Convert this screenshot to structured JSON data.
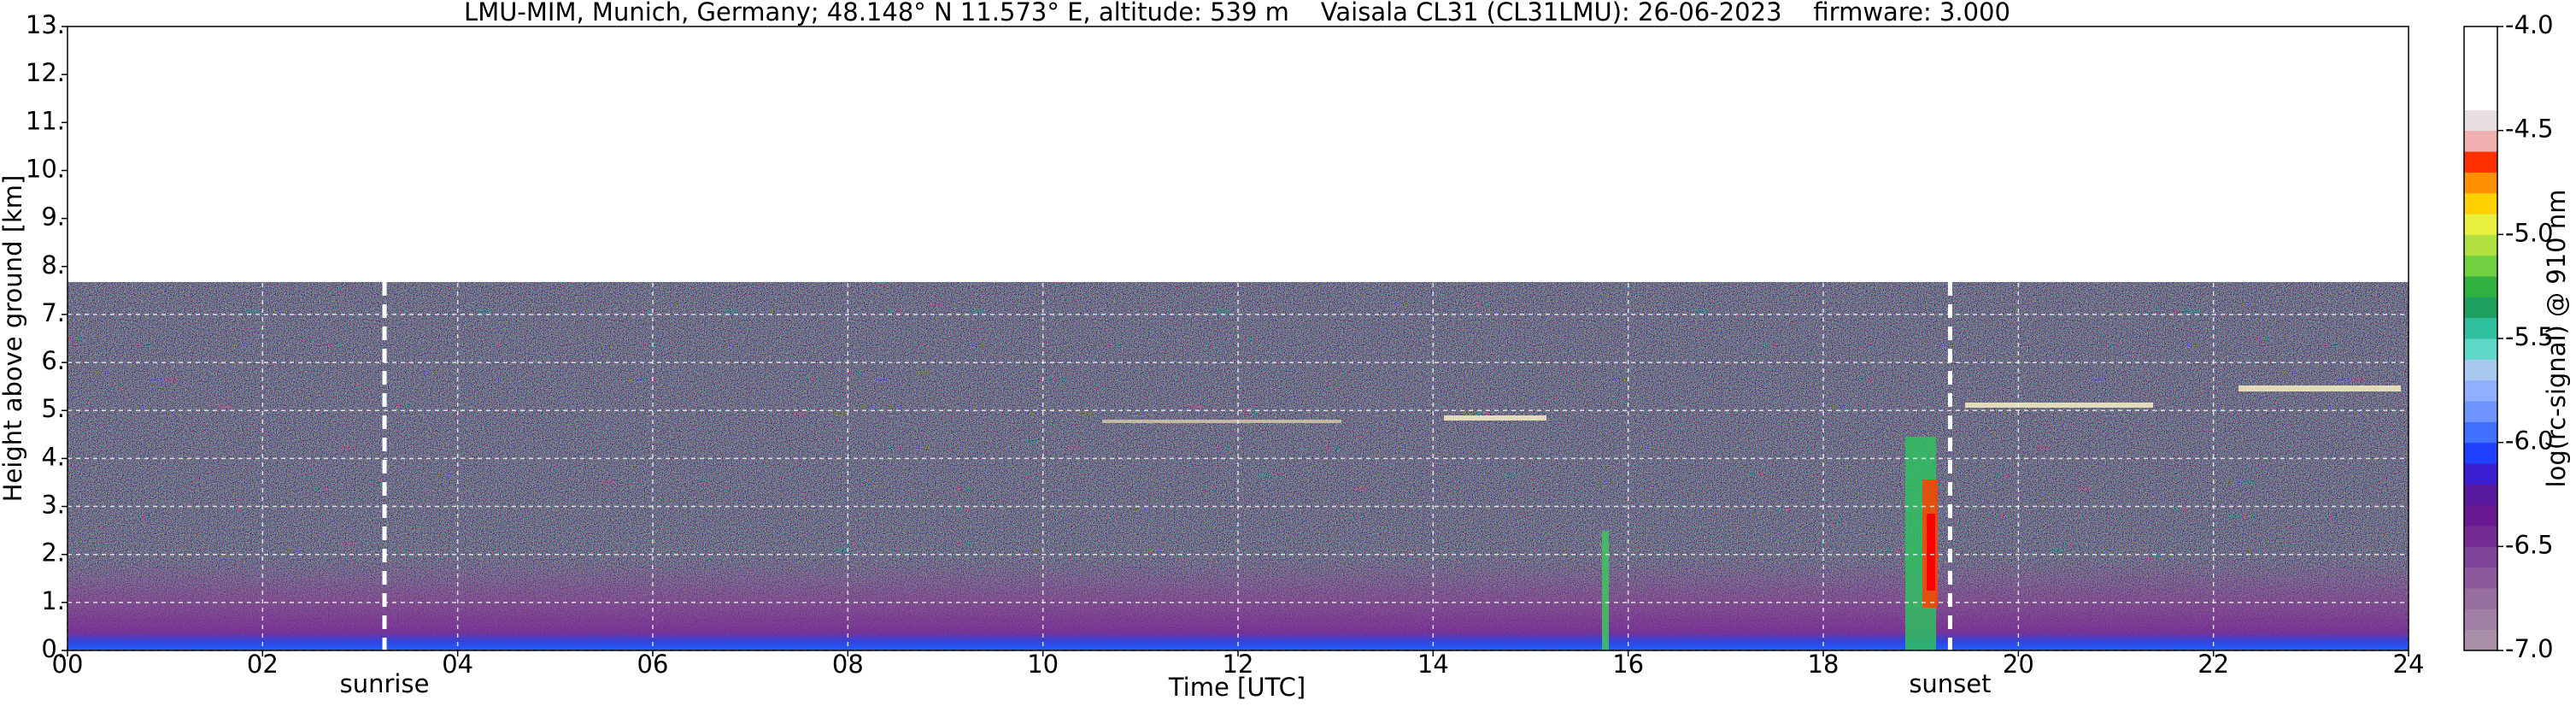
{
  "chart_data": {
    "type": "heatmap",
    "title": "LMU-MIM, Munich, Germany; 48.148° N 11.573° E, altitude: 539 m    Vaisala CL31 (CL31LMU): 26-06-2023    firmware: 3.000",
    "x_label": "Time [UTC]",
    "y_label": "Height above ground [km]",
    "xlim": [
      0,
      24
    ],
    "xticks": [
      {
        "value": 0,
        "label": "00"
      },
      {
        "value": 2,
        "label": "02"
      },
      {
        "value": 4,
        "label": "04"
      },
      {
        "value": 6,
        "label": "06"
      },
      {
        "value": 8,
        "label": "08"
      },
      {
        "value": 10,
        "label": "10"
      },
      {
        "value": 12,
        "label": "12"
      },
      {
        "value": 14,
        "label": "14"
      },
      {
        "value": 16,
        "label": "16"
      },
      {
        "value": 18,
        "label": "18"
      },
      {
        "value": 20,
        "label": "20"
      },
      {
        "value": 22,
        "label": "22"
      },
      {
        "value": 24,
        "label": "24"
      }
    ],
    "ylim": [
      0,
      13
    ],
    "yticks": [
      {
        "value": 0,
        "label": "0."
      },
      {
        "value": 1,
        "label": "1."
      },
      {
        "value": 2,
        "label": "2."
      },
      {
        "value": 3,
        "label": "3."
      },
      {
        "value": 4,
        "label": "4."
      },
      {
        "value": 5,
        "label": "5."
      },
      {
        "value": 6,
        "label": "6."
      },
      {
        "value": 7,
        "label": "7."
      },
      {
        "value": 8,
        "label": "8."
      },
      {
        "value": 9,
        "label": "9."
      },
      {
        "value": 10,
        "label": "10."
      },
      {
        "value": 11,
        "label": "11."
      },
      {
        "value": 12,
        "label": "12."
      },
      {
        "value": 13,
        "label": "13."
      }
    ],
    "grid": true,
    "annotations": [
      {
        "text": "sunrise",
        "x": 3.25
      },
      {
        "text": "sunset",
        "x": 19.3
      }
    ],
    "colorbar": {
      "label": "log(rc-signal) @ 910 nm",
      "clim": [
        -7,
        -4
      ],
      "ticks": [
        {
          "value": -7,
          "label": "-7.0"
        },
        {
          "value": -6.5,
          "label": "-6.5"
        },
        {
          "value": -6,
          "label": "-6.0"
        },
        {
          "value": -5.5,
          "label": "-5.5"
        },
        {
          "value": -5,
          "label": "-5.0"
        },
        {
          "value": -4.5,
          "label": "-4.5"
        },
        {
          "value": -4,
          "label": "-4.0"
        }
      ],
      "colors": [
        "#a890a8",
        "#a080a4",
        "#9870a0",
        "#8c5a9c",
        "#804498",
        "#742c94",
        "#681890",
        "#5a1aa0",
        "#3a20d0",
        "#2040ff",
        "#4070ff",
        "#6f94ff",
        "#90b0ff",
        "#a8c8f0",
        "#60d8c8",
        "#30c0a0",
        "#20a060",
        "#30b040",
        "#70d040",
        "#b0e040",
        "#e8f040",
        "#ffd000",
        "#ff9000",
        "#ff3000",
        "#f0b0b0",
        "#e8e0e0",
        "#ffffff",
        "#ffffff",
        "#ffffff",
        "#ffffff"
      ]
    }
  }
}
